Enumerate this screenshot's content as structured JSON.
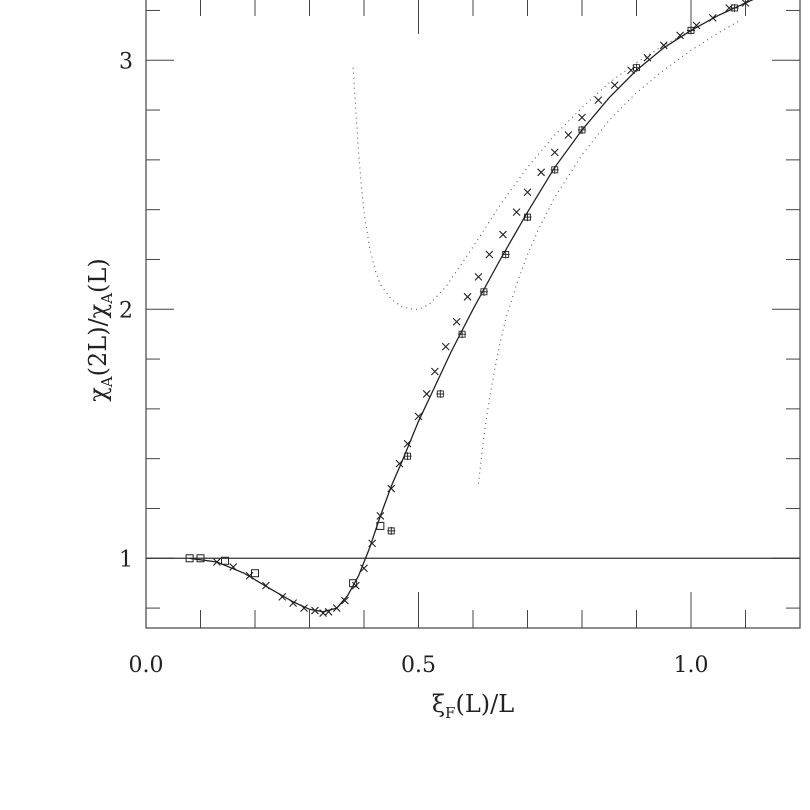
{
  "chart_data": {
    "type": "scatter",
    "title": "",
    "xlabel": "ξ_F(L)/L",
    "ylabel": "χ_A(2L)/χ_A(L)",
    "xlim": [
      0.0,
      1.2
    ],
    "ylim": [
      0.72,
      3.25
    ],
    "x_ticks": [
      {
        "value": 0.0,
        "label": "0.0"
      },
      {
        "value": 0.5,
        "label": "0.5"
      },
      {
        "value": 1.0,
        "label": "1.0"
      }
    ],
    "y_ticks": [
      {
        "value": 1,
        "label": "1"
      },
      {
        "value": 2,
        "label": "2"
      },
      {
        "value": 3,
        "label": "3"
      }
    ],
    "x_minor_ticks": [
      0.1,
      0.2,
      0.3,
      0.4,
      0.6,
      0.7,
      0.8,
      0.9,
      1.1
    ],
    "y_minor_ticks": [
      0.8,
      1.2,
      1.4,
      1.6,
      1.8,
      2.2,
      2.4,
      2.6,
      2.8,
      3.2
    ],
    "reference_line": {
      "y": 1
    },
    "series": [
      {
        "marker": "square",
        "x": [
          0.08,
          0.1,
          0.145,
          0.2,
          0.38,
          0.43
        ],
        "y": [
          1.0,
          1.0,
          0.99,
          0.94,
          0.9,
          1.13
        ]
      },
      {
        "marker": "cross",
        "x": [
          0.13,
          0.16,
          0.19,
          0.22,
          0.25,
          0.27,
          0.29,
          0.31,
          0.325,
          0.335,
          0.35,
          0.365,
          0.385,
          0.4,
          0.415,
          0.43,
          0.45,
          0.465,
          0.48,
          0.5,
          0.515,
          0.53,
          0.55,
          0.57,
          0.59,
          0.61,
          0.63,
          0.655,
          0.68,
          0.7,
          0.725,
          0.75,
          0.775,
          0.8,
          0.83,
          0.86,
          0.89,
          0.92,
          0.95,
          0.98,
          1.01,
          1.04,
          1.07,
          1.1
        ],
        "y": [
          0.985,
          0.965,
          0.93,
          0.89,
          0.845,
          0.82,
          0.8,
          0.79,
          0.78,
          0.785,
          0.8,
          0.83,
          0.89,
          0.96,
          1.06,
          1.17,
          1.28,
          1.38,
          1.46,
          1.57,
          1.66,
          1.75,
          1.85,
          1.95,
          2.05,
          2.13,
          2.22,
          2.3,
          2.39,
          2.47,
          2.55,
          2.63,
          2.7,
          2.77,
          2.84,
          2.9,
          2.96,
          3.01,
          3.06,
          3.1,
          3.14,
          3.17,
          3.21,
          3.23
        ]
      },
      {
        "marker": "plus-box",
        "x": [
          0.45,
          0.48,
          0.54,
          0.58,
          0.62,
          0.66,
          0.7,
          0.75,
          0.8,
          0.9,
          1.0,
          1.08,
          1.13
        ],
        "y": [
          1.11,
          1.41,
          1.66,
          1.9,
          2.07,
          2.22,
          2.37,
          2.56,
          2.72,
          2.97,
          3.12,
          3.21,
          3.26
        ]
      }
    ],
    "fit_curve": {
      "x": [
        0.08,
        0.13,
        0.18,
        0.23,
        0.27,
        0.3,
        0.325,
        0.35,
        0.37,
        0.39,
        0.41,
        0.43,
        0.45,
        0.47,
        0.5,
        0.53,
        0.56,
        0.6,
        0.65,
        0.7,
        0.75,
        0.8,
        0.85,
        0.9,
        0.95,
        1.0,
        1.05,
        1.1,
        1.13
      ],
      "y": [
        1.0,
        0.985,
        0.94,
        0.875,
        0.825,
        0.795,
        0.785,
        0.8,
        0.85,
        0.93,
        1.04,
        1.17,
        1.29,
        1.39,
        1.55,
        1.69,
        1.83,
        2.0,
        2.2,
        2.39,
        2.57,
        2.72,
        2.85,
        2.96,
        3.05,
        3.12,
        3.18,
        3.23,
        3.26
      ]
    },
    "dotted_curves": [
      {
        "x": [
          0.38,
          0.385,
          0.39,
          0.395,
          0.4,
          0.41,
          0.42,
          0.43,
          0.45,
          0.47,
          0.49,
          0.5,
          0.52,
          0.55,
          0.6,
          0.65,
          0.7,
          0.75,
          0.8,
          0.85,
          0.9,
          0.95,
          1.0,
          1.05,
          1.1
        ],
        "y": [
          2.97,
          2.8,
          2.63,
          2.5,
          2.39,
          2.25,
          2.16,
          2.1,
          2.04,
          2.01,
          2.0,
          2.0,
          2.02,
          2.09,
          2.25,
          2.42,
          2.57,
          2.7,
          2.81,
          2.91,
          2.99,
          3.06,
          3.12,
          3.18,
          3.23
        ]
      },
      {
        "x": [
          0.61,
          0.62,
          0.63,
          0.64,
          0.65,
          0.66,
          0.68,
          0.7,
          0.72,
          0.75,
          0.8,
          0.85,
          0.9,
          0.95,
          1.0,
          1.05,
          1.09
        ],
        "y": [
          1.3,
          1.49,
          1.64,
          1.76,
          1.87,
          1.96,
          2.1,
          2.22,
          2.32,
          2.45,
          2.62,
          2.76,
          2.87,
          2.96,
          3.04,
          3.11,
          3.16
        ]
      }
    ]
  }
}
